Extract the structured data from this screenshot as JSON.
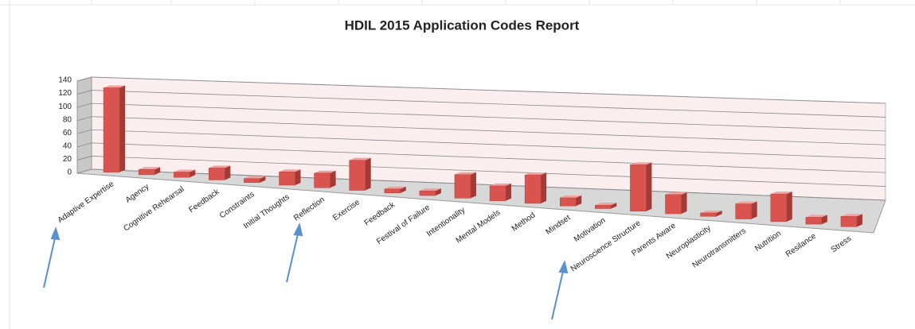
{
  "chart_data": {
    "type": "bar3d",
    "title": "HDIL 2015 Application Codes Report",
    "categories": [
      "Adaptive Expertise",
      "Agency",
      "Cognitive Rehearsal",
      "Feedback",
      "Constraints",
      "Initial Thoughts",
      "Reflection",
      "Exercise",
      "Feedback",
      "Festival of Failure",
      "Intentionality",
      "Mental Models",
      "Method",
      "Mindset",
      "Motivation",
      "Neuroscience Structure",
      "Parents Aware",
      "Neuroplasticity",
      "Neurotransmitters",
      "Nutrition",
      "Resilance",
      "Stress"
    ],
    "values": [
      128,
      8,
      8,
      18,
      6,
      20,
      22,
      45,
      6,
      7,
      35,
      22,
      42,
      12,
      5,
      68,
      28,
      5,
      22,
      40,
      10,
      15
    ],
    "color": "#d9534f",
    "ylim": [
      0,
      140
    ],
    "yticks": [
      0,
      20,
      40,
      60,
      80,
      100,
      120,
      140
    ],
    "grid": true
  }
}
